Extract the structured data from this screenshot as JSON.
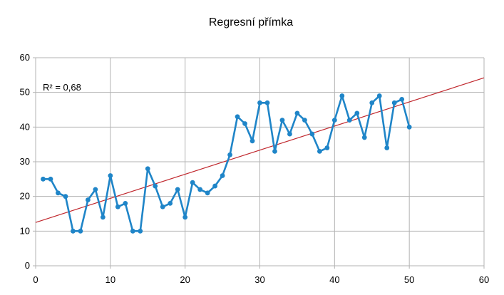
{
  "chart_data": {
    "type": "scatter",
    "title": "Regresní přímka",
    "annotation": "R² = 0,68",
    "xlim": [
      0,
      60
    ],
    "ylim": [
      0,
      60
    ],
    "x_ticks": [
      "0",
      "10",
      "20",
      "30",
      "40",
      "50",
      "60"
    ],
    "y_ticks": [
      "0",
      "10",
      "20",
      "30",
      "40",
      "50",
      "60"
    ],
    "grid": true,
    "legend": "none",
    "series": [
      {
        "style": "line-with-markers",
        "color": "#1f85c8",
        "x": [
          1,
          2,
          3,
          4,
          5,
          6,
          7,
          8,
          9,
          10,
          11,
          12,
          13,
          14,
          15,
          16,
          17,
          18,
          19,
          20,
          21,
          22,
          23,
          24,
          25,
          26,
          27,
          28,
          29,
          30,
          31,
          32,
          33,
          34,
          35,
          36,
          37,
          38,
          39,
          40,
          41,
          42,
          43,
          44,
          45,
          46,
          47,
          48,
          49,
          50
        ],
        "y": [
          25,
          25,
          21,
          20,
          10,
          10,
          19,
          22,
          14,
          26,
          17,
          18,
          10,
          10,
          28,
          23,
          17,
          18,
          22,
          14,
          24,
          22,
          21,
          23,
          26,
          32,
          43,
          41,
          36,
          47,
          47,
          33,
          42,
          38,
          44,
          42,
          38,
          33,
          34,
          42,
          49,
          42,
          44,
          37,
          47,
          49,
          34,
          47,
          48,
          40
        ]
      }
    ],
    "trendline": {
      "color": "#c0272d",
      "x": [
        0,
        60
      ],
      "y": [
        12.5,
        54.2
      ]
    }
  }
}
